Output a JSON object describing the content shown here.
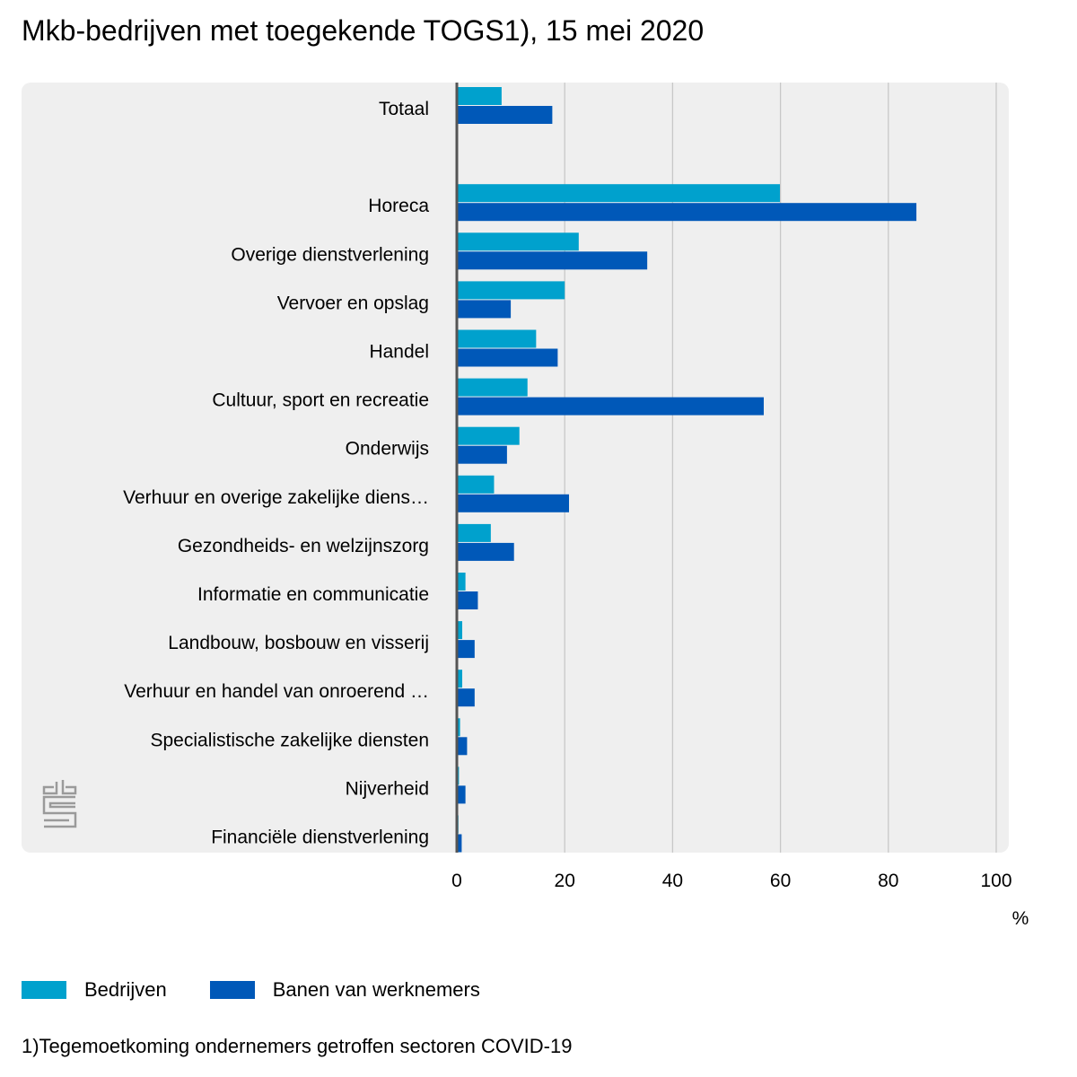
{
  "chart_data": {
    "type": "bar",
    "orientation": "horizontal",
    "title": "Mkb-bedrijven met toegekende TOGS1), 15 mei 2020",
    "xlabel": "",
    "unit_label": "%",
    "xlim": [
      0,
      100
    ],
    "xticks": [
      0,
      20,
      40,
      60,
      80,
      100
    ],
    "grid": true,
    "legend_position": "bottom-left",
    "categories": [
      "Totaal",
      "",
      "Horeca",
      "Overige dienstverlening",
      "Vervoer en opslag",
      "Handel",
      "Cultuur, sport en recreatie",
      "Onderwijs",
      "Verhuur en overige zakelijke diens…",
      "Gezondheids- en welzijnszorg",
      "Informatie en communicatie",
      "Landbouw, bosbouw en visserij",
      "Verhuur en handel van onroerend …",
      "Specialistische zakelijke diensten",
      "Nijverheid",
      "Financiële dienstverlening"
    ],
    "series": [
      {
        "name": "Bedrijven",
        "color": "#00a1cd",
        "values": [
          8.3,
          null,
          59.9,
          22.6,
          20.0,
          14.7,
          13.1,
          11.6,
          6.9,
          6.3,
          1.6,
          1.0,
          1.0,
          0.6,
          0.4,
          0.3
        ]
      },
      {
        "name": "Banen van werknemers",
        "color": "#0058b8",
        "values": [
          17.7,
          null,
          85.2,
          35.3,
          10.0,
          18.7,
          56.9,
          9.3,
          20.8,
          10.6,
          3.9,
          3.3,
          3.3,
          1.9,
          1.6,
          0.9
        ]
      }
    ]
  },
  "footnote": "1)Tegemoetkoming ondernemers getroffen sectoren COVID-19",
  "colors": {
    "panel_background": "#efefef",
    "gridline": "#c8c8c8",
    "axis_line": "#555555"
  },
  "logo_icon": "cbs-logo-icon"
}
